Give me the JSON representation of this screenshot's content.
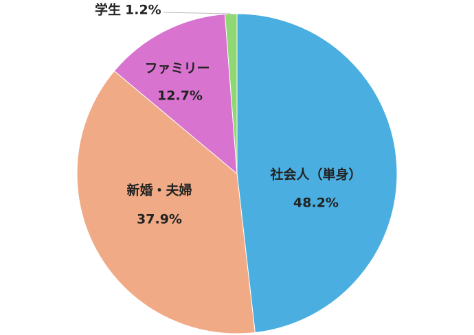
{
  "chart_data": {
    "type": "pie",
    "categories": [
      "社会人（単身）",
      "新婚・夫婦",
      "ファミリー",
      "学生"
    ],
    "values": [
      48.2,
      37.9,
      12.7,
      1.2
    ],
    "value_labels": [
      "48.2%",
      "37.9%",
      "12.7%",
      "1.2%"
    ],
    "colors": [
      "#4aafe0",
      "#f0aa85",
      "#d873cf",
      "#8fd873"
    ]
  }
}
